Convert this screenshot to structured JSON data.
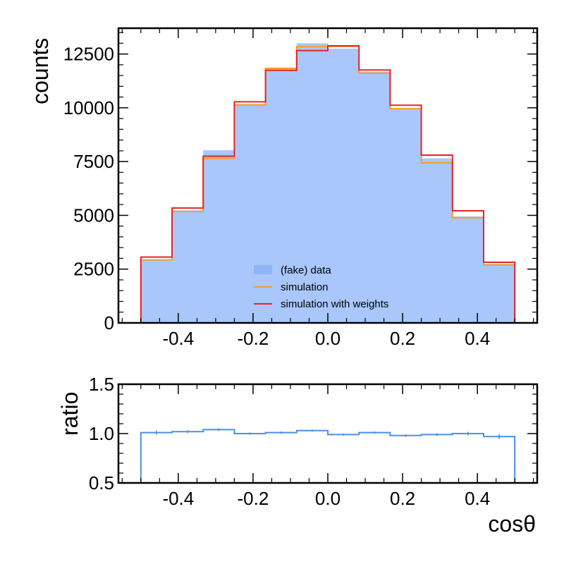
{
  "chart_data": [
    {
      "type": "histogram",
      "bin_edges": [
        -0.5,
        -0.41667,
        -0.33333,
        -0.25,
        -0.16667,
        -0.08333,
        0.0,
        0.08333,
        0.16667,
        0.25,
        0.33333,
        0.41667,
        0.5
      ],
      "series": [
        {
          "name": "(fake) data",
          "style": "filled",
          "color": "#a9c7fb",
          "legend_color": "#8fb5f8",
          "values": [
            2950,
            5230,
            8030,
            10180,
            11870,
            13000,
            12750,
            11680,
            9950,
            7650,
            4950,
            2750
          ]
        },
        {
          "name": "simulation",
          "style": "step",
          "color": "#f5a023",
          "values": [
            2930,
            5180,
            7650,
            10130,
            11830,
            12840,
            12850,
            11610,
            9960,
            7440,
            4890,
            2690
          ]
        },
        {
          "name": "simulation with weights",
          "style": "step",
          "color": "#e3252c",
          "values": [
            3060,
            5340,
            7750,
            10280,
            11740,
            12660,
            12880,
            11760,
            10120,
            7800,
            5210,
            2820
          ]
        }
      ],
      "xlabel": "",
      "ylabel": "counts",
      "xlim": [
        -0.56,
        0.56
      ],
      "ylim": [
        0,
        13700
      ],
      "x_ticks": [
        -0.4,
        -0.2,
        0.0,
        0.2,
        0.4
      ],
      "x_tick_labels": [
        "-0.4",
        "-0.2",
        "0.0",
        "0.2",
        "0.4"
      ],
      "y_ticks": [
        0,
        2500,
        5000,
        7500,
        10000,
        12500
      ],
      "y_tick_labels": [
        "0",
        "2500",
        "5000",
        "7500",
        "10000",
        "12500"
      ],
      "legend_placement": "lower-center",
      "grid": false
    },
    {
      "type": "histogram",
      "bin_edges": [
        -0.5,
        -0.41667,
        -0.33333,
        -0.25,
        -0.16667,
        -0.08333,
        0.0,
        0.08333,
        0.16667,
        0.25,
        0.33333,
        0.41667,
        0.5
      ],
      "series": [
        {
          "name": "",
          "style": "step",
          "color": "#4a8fe8",
          "values": [
            1.01,
            1.02,
            1.04,
            1.0,
            1.01,
            1.03,
            0.99,
            1.01,
            0.98,
            0.99,
            1.0,
            0.97
          ],
          "errors": [
            0.02,
            0.015,
            0.014,
            0.012,
            0.012,
            0.011,
            0.011,
            0.012,
            0.012,
            0.014,
            0.018,
            0.025
          ]
        }
      ],
      "xlabel": "cosθ",
      "ylabel": "ratio",
      "xlim": [
        -0.56,
        0.56
      ],
      "ylim": [
        0.5,
        1.5
      ],
      "x_ticks": [
        -0.4,
        -0.2,
        0.0,
        0.2,
        0.4
      ],
      "x_tick_labels": [
        "-0.4",
        "-0.2",
        "0.0",
        "0.2",
        "0.4"
      ],
      "y_ticks": [
        0.5,
        1.0,
        1.5
      ],
      "y_tick_labels": [
        "0.5",
        "1.0",
        "1.5"
      ],
      "grid": false
    }
  ]
}
